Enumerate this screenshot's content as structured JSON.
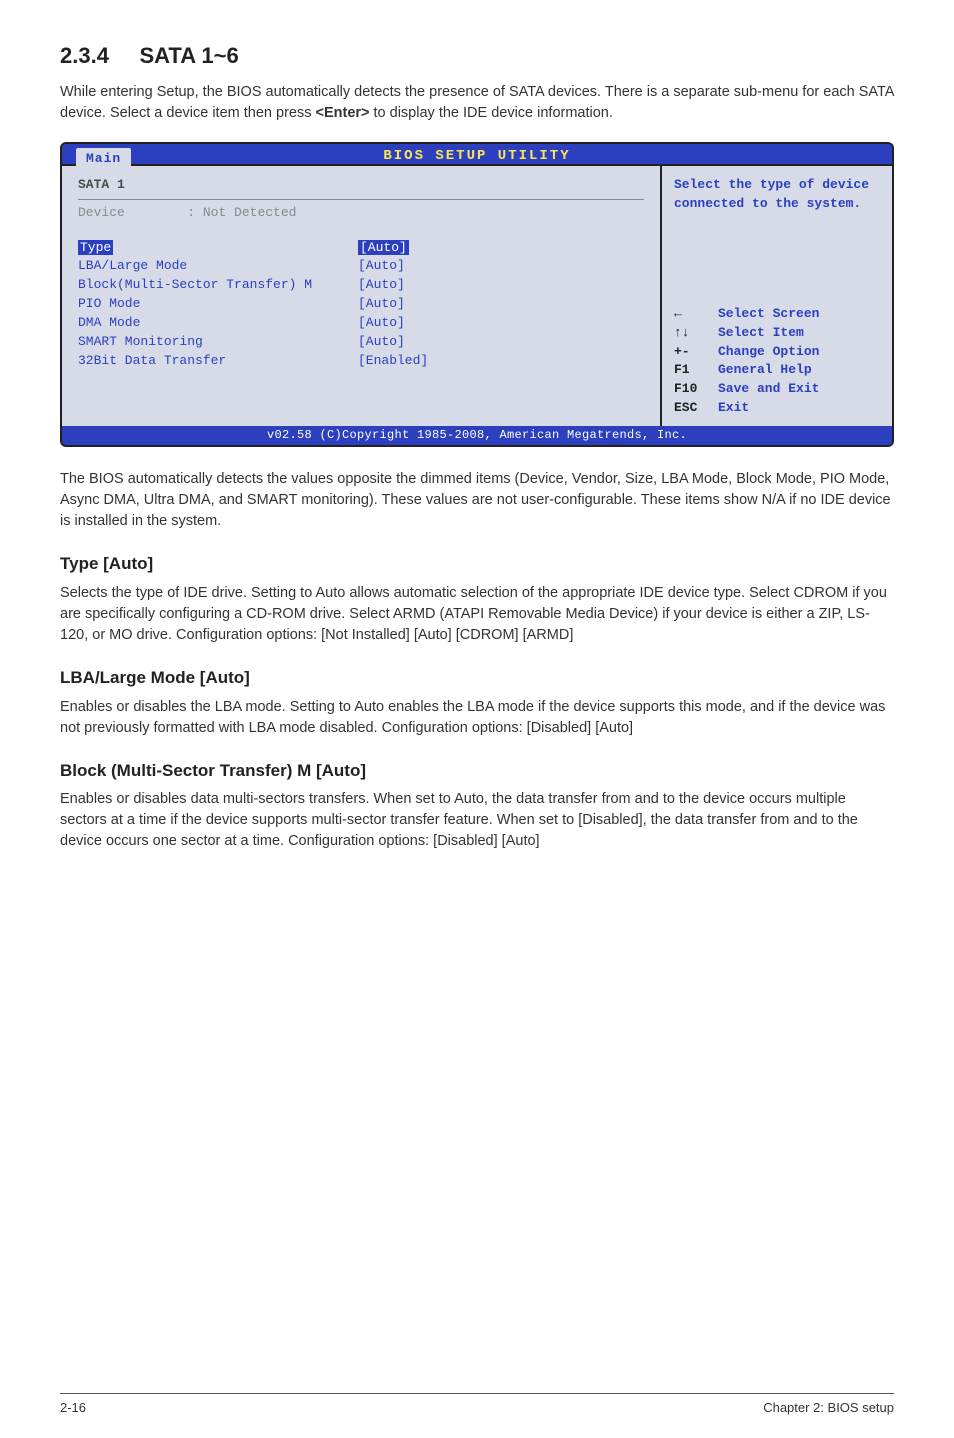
{
  "section": {
    "number": "2.3.4",
    "title": "SATA 1~6",
    "intro": "While entering Setup, the BIOS automatically detects the presence of SATA devices. There is a separate sub-menu for each SATA device. Select a device item then press ",
    "intro_key": "<Enter>",
    "intro_tail": " to display the IDE device information."
  },
  "bios": {
    "title": "BIOS SETUP UTILITY",
    "tab": "Main",
    "footer": "v02.58 (C)Copyright 1985-2008, American Megatrends, Inc.",
    "left": {
      "sata_label": "SATA 1",
      "device_label": "Device",
      "device_value": ": Not Detected",
      "rows": [
        {
          "k": "Type",
          "v": "[Auto]",
          "highlight": true
        },
        {
          "k": "LBA/Large Mode",
          "v": "[Auto]"
        },
        {
          "k": "Block(Multi-Sector Transfer) M",
          "v": "[Auto]"
        },
        {
          "k": "PIO Mode",
          "v": "[Auto]"
        },
        {
          "k": "DMA Mode",
          "v": "[Auto]"
        },
        {
          "k": "SMART Monitoring",
          "v": "[Auto]"
        },
        {
          "k": "32Bit Data Transfer",
          "v": "[Enabled]"
        }
      ]
    },
    "right": {
      "help": "Select the type of device connected to the system.",
      "nav": [
        {
          "sym": "←",
          "label": "Select Screen"
        },
        {
          "sym": "↑↓",
          "label": "Select Item"
        },
        {
          "sym": "+-",
          "label": "Change Option"
        },
        {
          "sym": "F1",
          "label": "General Help"
        },
        {
          "sym": "F10",
          "label": "Save and Exit"
        },
        {
          "sym": "ESC",
          "label": "Exit"
        }
      ]
    }
  },
  "para_after_bios": "The BIOS automatically detects the values opposite the dimmed items (Device, Vendor, Size, LBA Mode, Block Mode, PIO Mode, Async DMA, Ultra DMA, and SMART monitoring). These values are not user-configurable. These items show N/A if no IDE device is installed in the system.",
  "subsections": [
    {
      "title": "Type [Auto]",
      "body": "Selects the type of IDE drive. Setting to Auto allows automatic selection of the appropriate IDE device type. Select CDROM if you are specifically configuring a CD-ROM drive. Select ARMD (ATAPI Removable Media Device) if your device is either a ZIP, LS-120, or MO drive. Configuration options: [Not Installed] [Auto] [CDROM] [ARMD]"
    },
    {
      "title": "LBA/Large Mode [Auto]",
      "body": "Enables or disables the LBA mode. Setting to Auto enables the LBA mode if the device supports this mode, and if the device was not previously formatted with LBA mode disabled. Configuration options: [Disabled] [Auto]"
    },
    {
      "title": "Block (Multi-Sector Transfer) M [Auto]",
      "body": "Enables or disables data multi-sectors transfers. When set to Auto, the data transfer from and to the device occurs multiple sectors at a time if the device supports multi-sector transfer feature. When set to [Disabled], the data transfer from and to the device occurs one sector at a time. Configuration options: [Disabled] [Auto]"
    }
  ],
  "footer": {
    "page": "2-16",
    "chapter": "Chapter 2: BIOS setup"
  }
}
